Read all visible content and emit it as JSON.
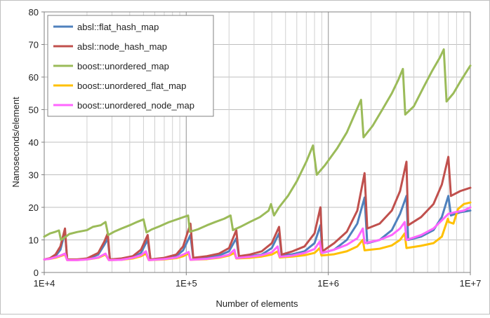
{
  "chart_data": {
    "type": "line",
    "title": "",
    "xlabel": "Number of elements",
    "ylabel": "Nanoseconds/element",
    "x_scale": "log",
    "xlim": [
      10000,
      10000000
    ],
    "ylim": [
      0,
      80
    ],
    "x_ticks": [
      {
        "value": 10000,
        "label": "1E+4"
      },
      {
        "value": 100000,
        "label": "1E+5"
      },
      {
        "value": 1000000,
        "label": "1E+6"
      },
      {
        "value": 10000000,
        "label": "1E+7"
      }
    ],
    "y_ticks": [
      0,
      10,
      20,
      30,
      40,
      50,
      60,
      70,
      80
    ],
    "grid": true,
    "legend_position": "top-left",
    "series": [
      {
        "name": "absl::flat_hash_map",
        "color": "#4f81bd",
        "points": [
          [
            10000,
            4.0
          ],
          [
            11000,
            4.3
          ],
          [
            12000,
            5.0
          ],
          [
            13000,
            7.0
          ],
          [
            14000,
            12.5
          ],
          [
            14500,
            4.0
          ],
          [
            17000,
            3.9
          ],
          [
            20000,
            4.1
          ],
          [
            24000,
            5.5
          ],
          [
            26500,
            8.5
          ],
          [
            28000,
            10.5
          ],
          [
            29000,
            4.0
          ],
          [
            35000,
            4.1
          ],
          [
            42000,
            4.6
          ],
          [
            48000,
            6.0
          ],
          [
            53500,
            10.0
          ],
          [
            56000,
            4.0
          ],
          [
            70000,
            4.3
          ],
          [
            85000,
            5.0
          ],
          [
            95000,
            6.8
          ],
          [
            107000,
            11.5
          ],
          [
            112000,
            4.3
          ],
          [
            140000,
            4.6
          ],
          [
            170000,
            5.2
          ],
          [
            200000,
            6.5
          ],
          [
            225000,
            10.5
          ],
          [
            235000,
            4.8
          ],
          [
            280000,
            5.0
          ],
          [
            340000,
            5.5
          ],
          [
            400000,
            7.5
          ],
          [
            450000,
            12.0
          ],
          [
            470000,
            5.2
          ],
          [
            560000,
            5.6
          ],
          [
            680000,
            6.5
          ],
          [
            800000,
            9.0
          ],
          [
            880000,
            14.5
          ],
          [
            910000,
            6.0
          ],
          [
            1100000,
            7.0
          ],
          [
            1350000,
            10.0
          ],
          [
            1600000,
            15.0
          ],
          [
            1800000,
            23.0
          ],
          [
            1880000,
            9.0
          ],
          [
            2300000,
            10.0
          ],
          [
            2800000,
            13.0
          ],
          [
            3200000,
            18.0
          ],
          [
            3550000,
            23.5
          ],
          [
            3650000,
            10.0
          ],
          [
            4500000,
            11.0
          ],
          [
            5500000,
            13.0
          ],
          [
            6300000,
            17.0
          ],
          [
            7000000,
            23.5
          ],
          [
            7300000,
            17.5
          ],
          [
            8500000,
            18.5
          ],
          [
            10000000,
            19.0
          ]
        ]
      },
      {
        "name": "absl::node_hash_map",
        "color": "#c0504d",
        "points": [
          [
            10000,
            4.0
          ],
          [
            11000,
            4.4
          ],
          [
            12000,
            5.5
          ],
          [
            13000,
            8.0
          ],
          [
            14000,
            13.5
          ],
          [
            14500,
            4.0
          ],
          [
            17000,
            4.0
          ],
          [
            20000,
            4.3
          ],
          [
            24000,
            6.0
          ],
          [
            26500,
            9.5
          ],
          [
            28000,
            12.0
          ],
          [
            29000,
            4.0
          ],
          [
            35000,
            4.3
          ],
          [
            42000,
            5.0
          ],
          [
            48000,
            7.0
          ],
          [
            53500,
            11.5
          ],
          [
            56000,
            4.0
          ],
          [
            70000,
            4.5
          ],
          [
            85000,
            5.5
          ],
          [
            95000,
            8.0
          ],
          [
            107000,
            15.0
          ],
          [
            112000,
            4.5
          ],
          [
            140000,
            5.0
          ],
          [
            170000,
            5.8
          ],
          [
            200000,
            7.5
          ],
          [
            225000,
            13.0
          ],
          [
            235000,
            5.0
          ],
          [
            280000,
            5.5
          ],
          [
            340000,
            6.5
          ],
          [
            400000,
            9.0
          ],
          [
            450000,
            14.0
          ],
          [
            470000,
            5.5
          ],
          [
            560000,
            6.5
          ],
          [
            680000,
            8.0
          ],
          [
            800000,
            12.0
          ],
          [
            880000,
            20.0
          ],
          [
            910000,
            6.5
          ],
          [
            1100000,
            9.0
          ],
          [
            1350000,
            12.5
          ],
          [
            1600000,
            19.0
          ],
          [
            1800000,
            30.5
          ],
          [
            1880000,
            13.5
          ],
          [
            2300000,
            15.0
          ],
          [
            2800000,
            19.0
          ],
          [
            3200000,
            25.0
          ],
          [
            3550000,
            34.0
          ],
          [
            3650000,
            14.5
          ],
          [
            4500000,
            17.0
          ],
          [
            5500000,
            21.0
          ],
          [
            6300000,
            27.0
          ],
          [
            7000000,
            35.5
          ],
          [
            7300000,
            23.5
          ],
          [
            8500000,
            25.0
          ],
          [
            10000000,
            26.0
          ]
        ]
      },
      {
        "name": "boost::unordered_map",
        "color": "#9bbb59",
        "points": [
          [
            10000,
            11.0
          ],
          [
            11000,
            12.0
          ],
          [
            12000,
            12.5
          ],
          [
            12700,
            12.9
          ],
          [
            13100,
            10.0
          ],
          [
            14000,
            10.8
          ],
          [
            15000,
            11.8
          ],
          [
            17000,
            12.4
          ],
          [
            20000,
            13.0
          ],
          [
            22000,
            14.0
          ],
          [
            25000,
            14.5
          ],
          [
            27000,
            15.5
          ],
          [
            28200,
            11.5
          ],
          [
            31000,
            12.5
          ],
          [
            35000,
            13.5
          ],
          [
            40000,
            14.5
          ],
          [
            45000,
            15.5
          ],
          [
            50000,
            16.3
          ],
          [
            52500,
            12.3
          ],
          [
            57000,
            13.2
          ],
          [
            65000,
            14.2
          ],
          [
            75000,
            15.4
          ],
          [
            90000,
            16.6
          ],
          [
            103000,
            17.5
          ],
          [
            106000,
            12.5
          ],
          [
            120000,
            13.2
          ],
          [
            140000,
            14.5
          ],
          [
            160000,
            15.5
          ],
          [
            185000,
            16.5
          ],
          [
            205000,
            17.5
          ],
          [
            213000,
            13.0
          ],
          [
            240000,
            14.0
          ],
          [
            280000,
            15.5
          ],
          [
            330000,
            17.0
          ],
          [
            380000,
            19.0
          ],
          [
            395000,
            21.0
          ],
          [
            415000,
            17.5
          ],
          [
            450000,
            20.0
          ],
          [
            520000,
            23.5
          ],
          [
            600000,
            28.0
          ],
          [
            700000,
            34.0
          ],
          [
            780000,
            39.0
          ],
          [
            830000,
            30.0
          ],
          [
            950000,
            33.0
          ],
          [
            1150000,
            38.0
          ],
          [
            1350000,
            43.0
          ],
          [
            1550000,
            49.0
          ],
          [
            1700000,
            53.0
          ],
          [
            1770000,
            41.5
          ],
          [
            2050000,
            45.0
          ],
          [
            2400000,
            50.0
          ],
          [
            2800000,
            55.0
          ],
          [
            3100000,
            59.0
          ],
          [
            3350000,
            62.5
          ],
          [
            3480000,
            48.5
          ],
          [
            4000000,
            51.0
          ],
          [
            4700000,
            57.0
          ],
          [
            5400000,
            62.0
          ],
          [
            6100000,
            66.0
          ],
          [
            6500000,
            68.5
          ],
          [
            6800000,
            52.5
          ],
          [
            7600000,
            55.0
          ],
          [
            8600000,
            59.0
          ],
          [
            10000000,
            63.5
          ]
        ]
      },
      {
        "name": "boost::unordered_flat_map",
        "color": "#ffc000",
        "points": [
          [
            10000,
            4.0
          ],
          [
            11000,
            4.2
          ],
          [
            12000,
            4.5
          ],
          [
            13000,
            5.0
          ],
          [
            14000,
            5.5
          ],
          [
            14500,
            3.8
          ],
          [
            17000,
            3.8
          ],
          [
            20000,
            4.0
          ],
          [
            24000,
            4.5
          ],
          [
            27000,
            5.5
          ],
          [
            28500,
            3.8
          ],
          [
            35000,
            3.9
          ],
          [
            42000,
            4.3
          ],
          [
            48000,
            5.0
          ],
          [
            52000,
            5.8
          ],
          [
            54500,
            3.8
          ],
          [
            70000,
            4.0
          ],
          [
            85000,
            4.4
          ],
          [
            95000,
            5.0
          ],
          [
            104000,
            5.8
          ],
          [
            107000,
            3.9
          ],
          [
            140000,
            4.1
          ],
          [
            170000,
            4.5
          ],
          [
            200000,
            5.2
          ],
          [
            218000,
            6.0
          ],
          [
            225000,
            4.3
          ],
          [
            280000,
            4.5
          ],
          [
            340000,
            4.9
          ],
          [
            400000,
            5.5
          ],
          [
            440000,
            6.5
          ],
          [
            455000,
            4.6
          ],
          [
            560000,
            4.9
          ],
          [
            680000,
            5.3
          ],
          [
            800000,
            6.0
          ],
          [
            870000,
            7.5
          ],
          [
            895000,
            5.2
          ],
          [
            1100000,
            5.6
          ],
          [
            1350000,
            6.5
          ],
          [
            1600000,
            8.0
          ],
          [
            1750000,
            10.0
          ],
          [
            1800000,
            6.8
          ],
          [
            2300000,
            7.3
          ],
          [
            2800000,
            8.3
          ],
          [
            3200000,
            10.0
          ],
          [
            3450000,
            12.0
          ],
          [
            3550000,
            7.5
          ],
          [
            4500000,
            8.2
          ],
          [
            5500000,
            9.0
          ],
          [
            6300000,
            11.0
          ],
          [
            6950000,
            16.5
          ],
          [
            7050000,
            15.5
          ],
          [
            7600000,
            15.0
          ],
          [
            8200000,
            19.5
          ],
          [
            9000000,
            21.0
          ],
          [
            10000000,
            21.5
          ]
        ]
      },
      {
        "name": "boost::unordered_node_map",
        "color": "#ff66ff",
        "points": [
          [
            10000,
            4.0
          ],
          [
            11000,
            4.2
          ],
          [
            12000,
            4.7
          ],
          [
            13000,
            5.2
          ],
          [
            14000,
            5.8
          ],
          [
            14500,
            3.8
          ],
          [
            17000,
            3.8
          ],
          [
            20000,
            4.0
          ],
          [
            24000,
            4.6
          ],
          [
            27000,
            5.8
          ],
          [
            28500,
            3.8
          ],
          [
            35000,
            3.9
          ],
          [
            42000,
            4.5
          ],
          [
            48000,
            5.3
          ],
          [
            52000,
            6.5
          ],
          [
            54500,
            3.8
          ],
          [
            70000,
            4.1
          ],
          [
            85000,
            4.6
          ],
          [
            95000,
            5.5
          ],
          [
            104000,
            6.3
          ],
          [
            107000,
            3.9
          ],
          [
            140000,
            4.2
          ],
          [
            170000,
            4.7
          ],
          [
            200000,
            5.5
          ],
          [
            218000,
            7.0
          ],
          [
            225000,
            4.4
          ],
          [
            280000,
            4.8
          ],
          [
            340000,
            5.3
          ],
          [
            400000,
            6.2
          ],
          [
            440000,
            8.0
          ],
          [
            455000,
            4.8
          ],
          [
            560000,
            5.2
          ],
          [
            680000,
            6.0
          ],
          [
            800000,
            7.2
          ],
          [
            870000,
            9.5
          ],
          [
            895000,
            6.0
          ],
          [
            1100000,
            7.0
          ],
          [
            1350000,
            8.5
          ],
          [
            1600000,
            10.5
          ],
          [
            1750000,
            13.5
          ],
          [
            1800000,
            9.0
          ],
          [
            2300000,
            10.0
          ],
          [
            2800000,
            11.5
          ],
          [
            3200000,
            13.5
          ],
          [
            3450000,
            15.5
          ],
          [
            3550000,
            10.0
          ],
          [
            4500000,
            11.5
          ],
          [
            5500000,
            13.5
          ],
          [
            6300000,
            16.0
          ],
          [
            7000000,
            18.0
          ],
          [
            7800000,
            18.5
          ],
          [
            9000000,
            19.0
          ],
          [
            10000000,
            20.0
          ]
        ]
      }
    ]
  }
}
